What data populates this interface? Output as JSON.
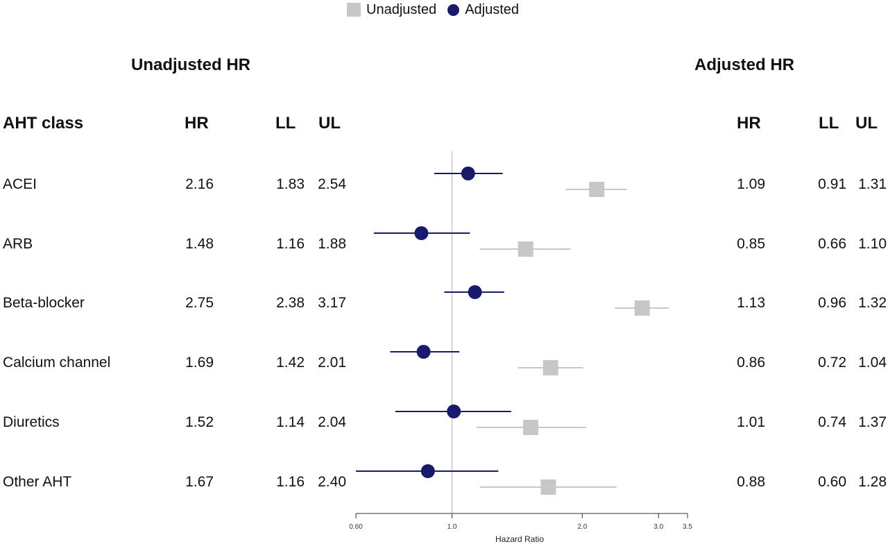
{
  "legend": {
    "unadjusted_label": "Unadjusted",
    "adjusted_label": "Adjusted"
  },
  "headers": {
    "unadjusted_title": "Unadjusted HR",
    "adjusted_title": "Adjusted HR",
    "class_col": "AHT class",
    "hr": "HR",
    "ll": "LL",
    "ul": "UL"
  },
  "colors": {
    "unadjusted": "#c8c6c6",
    "adjusted": "#1a1a6c",
    "reference_line": "#c8c8c8"
  },
  "rows": [
    {
      "name": "ACEI",
      "u_hr": "2.16",
      "u_ll": "1.83",
      "u_ul": "2.54",
      "a_hr": "1.09",
      "a_ll": "0.91",
      "a_ul": "1.31"
    },
    {
      "name": "ARB",
      "u_hr": "1.48",
      "u_ll": "1.16",
      "u_ul": "1.88",
      "a_hr": "0.85",
      "a_ll": "0.66",
      "a_ul": "1.10"
    },
    {
      "name": "Beta-blocker",
      "u_hr": "2.75",
      "u_ll": "2.38",
      "u_ul": "3.17",
      "a_hr": "1.13",
      "a_ll": "0.96",
      "a_ul": "1.32"
    },
    {
      "name": "Calcium channel",
      "u_hr": "1.69",
      "u_ll": "1.42",
      "u_ul": "2.01",
      "a_hr": "0.86",
      "a_ll": "0.72",
      "a_ul": "1.04"
    },
    {
      "name": "Diuretics",
      "u_hr": "1.52",
      "u_ll": "1.14",
      "u_ul": "2.04",
      "a_hr": "1.01",
      "a_ll": "0.74",
      "a_ul": "1.37"
    },
    {
      "name": "Other AHT",
      "u_hr": "1.67",
      "u_ll": "1.16",
      "u_ul": "2.40",
      "a_hr": "0.88",
      "a_ll": "0.60",
      "a_ul": "1.28"
    }
  ],
  "chart_data": {
    "type": "forest",
    "xlabel": "Hazard Ratio",
    "x_scale": "log",
    "xlim": [
      0.6,
      3.5
    ],
    "x_ticks": [
      0.6,
      1.0,
      2.0,
      3.0,
      3.5
    ],
    "x_tick_labels": [
      "0.60",
      "1.0",
      "2.0",
      "3.0",
      "3.5"
    ],
    "reference_value": 1.0,
    "categories": [
      "ACEI",
      "ARB",
      "Beta-blocker",
      "Calcium channel",
      "Diuretics",
      "Other AHT"
    ],
    "series": [
      {
        "name": "Unadjusted",
        "marker": "square",
        "hr": [
          2.16,
          1.48,
          2.75,
          1.69,
          1.52,
          1.67
        ],
        "ll": [
          1.83,
          1.16,
          2.38,
          1.42,
          1.14,
          1.16
        ],
        "ul": [
          2.54,
          1.88,
          3.17,
          2.01,
          2.04,
          2.4
        ]
      },
      {
        "name": "Adjusted",
        "marker": "circle",
        "hr": [
          1.09,
          0.85,
          1.13,
          0.86,
          1.01,
          0.88
        ],
        "ll": [
          0.91,
          0.66,
          0.96,
          0.72,
          0.74,
          0.6
        ],
        "ul": [
          1.31,
          1.1,
          1.32,
          1.04,
          1.37,
          1.28
        ]
      }
    ]
  }
}
